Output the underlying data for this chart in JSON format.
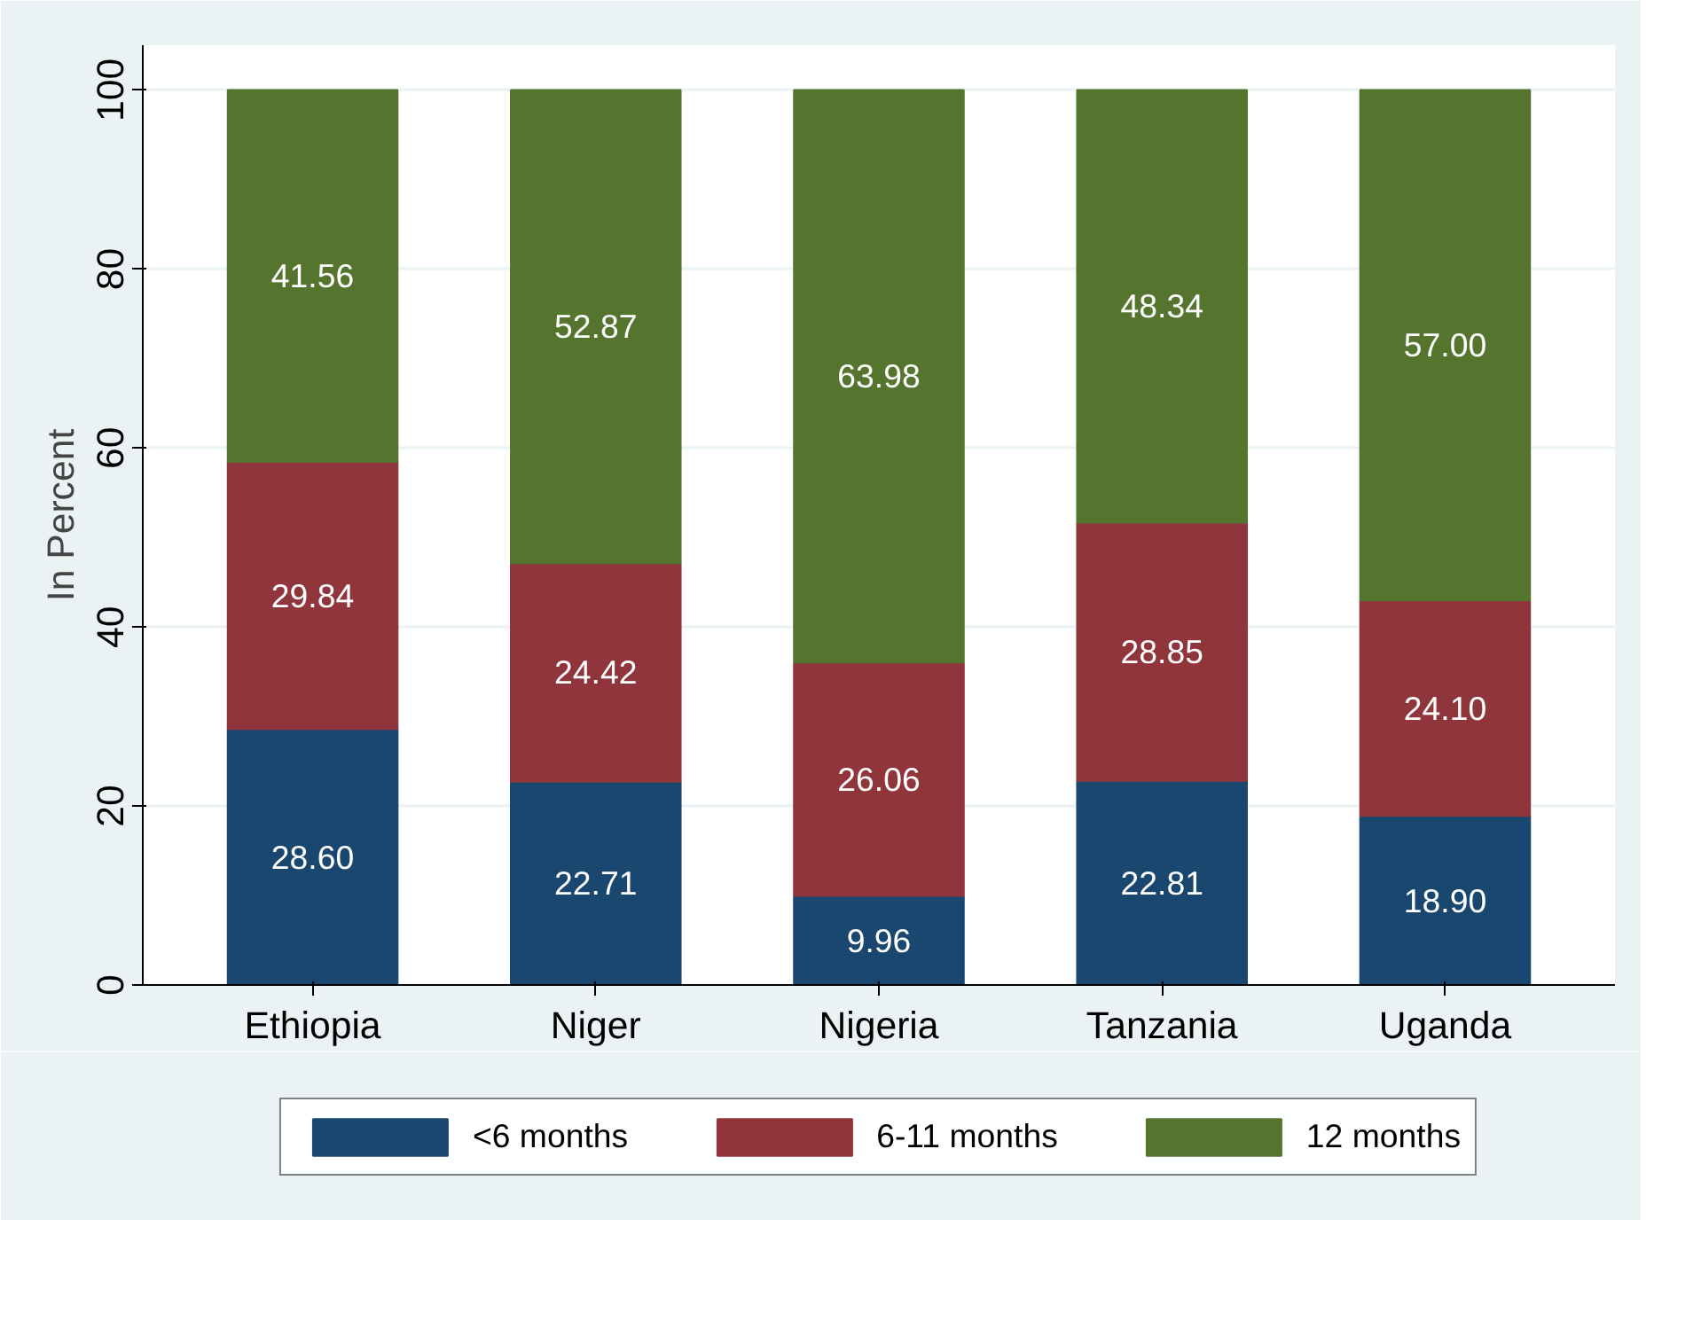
{
  "chart_data": {
    "type": "bar",
    "stacked": true,
    "ylabel": "In Percent",
    "categories": [
      "Ethiopia",
      "Niger",
      "Nigeria",
      "Tanzania",
      "Uganda"
    ],
    "ylim": [
      0,
      105
    ],
    "yticks": [
      0,
      20,
      40,
      60,
      80,
      100
    ],
    "grid": "y",
    "legend": "bottom",
    "series": [
      {
        "name": "<6 months",
        "color": "#1a476f",
        "values": [
          28.6,
          22.71,
          9.96,
          22.81,
          18.9
        ],
        "value_labels": [
          "28.60",
          "22.71",
          "9.96",
          "22.81",
          "18.90"
        ]
      },
      {
        "name": "6-11 months",
        "color": "#90353b",
        "values": [
          29.84,
          24.42,
          26.06,
          28.85,
          24.1
        ],
        "value_labels": [
          "29.84",
          "24.42",
          "26.06",
          "28.85",
          "24.10"
        ]
      },
      {
        "name": "12 months",
        "color": "#55752f",
        "values": [
          41.56,
          52.87,
          63.98,
          48.34,
          57.0
        ],
        "value_labels": [
          "41.56",
          "52.87",
          "63.98",
          "48.34",
          "57.00"
        ]
      }
    ]
  }
}
